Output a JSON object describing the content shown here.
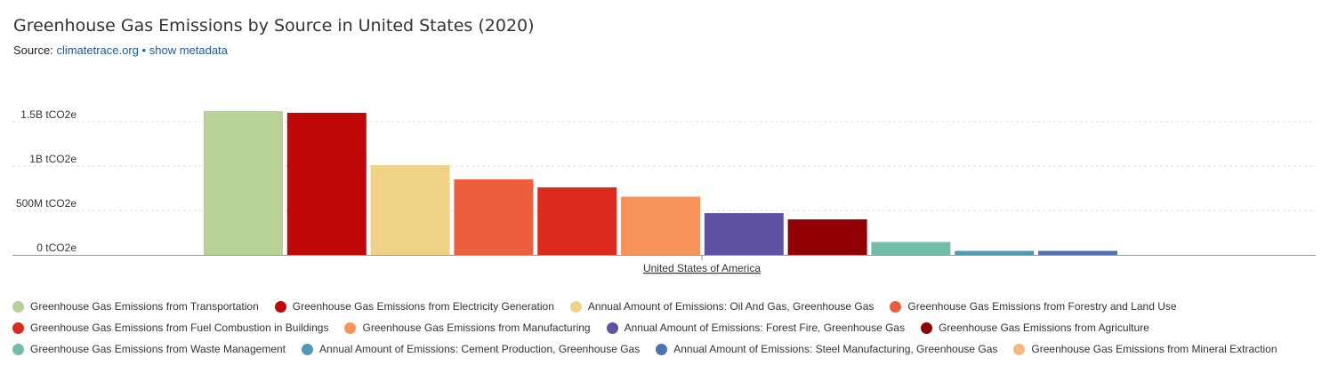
{
  "header": {
    "title": "Greenhouse Gas Emissions by Source in United States (2020)",
    "source_prefix": "Source:",
    "source_link": "climatetrace.org",
    "separator": "•",
    "metadata_link": "show metadata"
  },
  "chart_data": {
    "type": "bar",
    "categories": [
      "United States of America"
    ],
    "yticks": [
      {
        "value": 0,
        "label": "0 tCO2e"
      },
      {
        "value": 500000000,
        "label": "500M tCO2e"
      },
      {
        "value": 1000000000,
        "label": "1B tCO2e"
      },
      {
        "value": 1500000000,
        "label": "1.5B tCO2e"
      }
    ],
    "ylim": [
      0,
      1600000000
    ],
    "grid": true,
    "legend_position": "bottom",
    "series": [
      {
        "name": "Greenhouse Gas Emissions from Transportation",
        "color": "#b8d197",
        "values": [
          1620000000
        ]
      },
      {
        "name": "Greenhouse Gas Emissions from Electricity Generation",
        "color": "#c00808",
        "values": [
          1600000000
        ]
      },
      {
        "name": "Annual Amount of Emissions: Oil And Gas, Greenhouse Gas",
        "color": "#f0d287",
        "values": [
          1010000000
        ]
      },
      {
        "name": "Greenhouse Gas Emissions from Forestry and Land Use",
        "color": "#ed5f3c",
        "values": [
          850000000
        ]
      },
      {
        "name": "Greenhouse Gas Emissions from Fuel Combustion in Buildings",
        "color": "#dd2a1e",
        "values": [
          760000000
        ]
      },
      {
        "name": "Greenhouse Gas Emissions from Manufacturing",
        "color": "#f7935a",
        "values": [
          655000000
        ]
      },
      {
        "name": "Annual Amount of Emissions: Forest Fire, Greenhouse Gas",
        "color": "#6051a5",
        "values": [
          470000000
        ]
      },
      {
        "name": "Greenhouse Gas Emissions from Agriculture",
        "color": "#920006",
        "values": [
          400000000
        ]
      },
      {
        "name": "Greenhouse Gas Emissions from Waste Management",
        "color": "#72bda9",
        "values": [
          145000000
        ]
      },
      {
        "name": "Annual Amount of Emissions: Cement Production, Greenhouse Gas",
        "color": "#4e99b3",
        "values": [
          45000000
        ]
      },
      {
        "name": "Annual Amount of Emissions: Steel Manufacturing, Greenhouse Gas",
        "color": "#4b72b1",
        "values": [
          45000000
        ]
      },
      {
        "name": "Greenhouse Gas Emissions from Mineral Extraction",
        "color": "#f8b87a",
        "values": [
          0
        ]
      }
    ]
  }
}
